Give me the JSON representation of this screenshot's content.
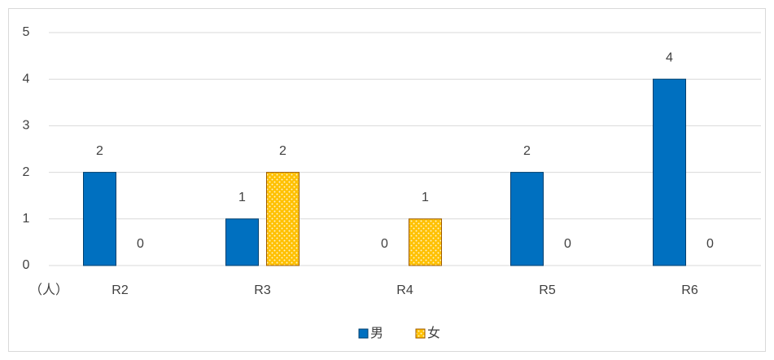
{
  "chart_data": {
    "type": "bar",
    "categories": [
      "R2",
      "R3",
      "R4",
      "R5",
      "R6"
    ],
    "series": [
      {
        "name": "男",
        "color": "#0070c0",
        "values": [
          2,
          1,
          0,
          2,
          4
        ]
      },
      {
        "name": "女",
        "color": "#ffc000",
        "values": [
          0,
          2,
          1,
          0,
          0
        ]
      }
    ],
    "y_label": "（人）",
    "ylim": [
      0,
      5
    ],
    "yticks": [
      0,
      1,
      2,
      3,
      4,
      5
    ],
    "grid": true,
    "legend": "bottom"
  }
}
